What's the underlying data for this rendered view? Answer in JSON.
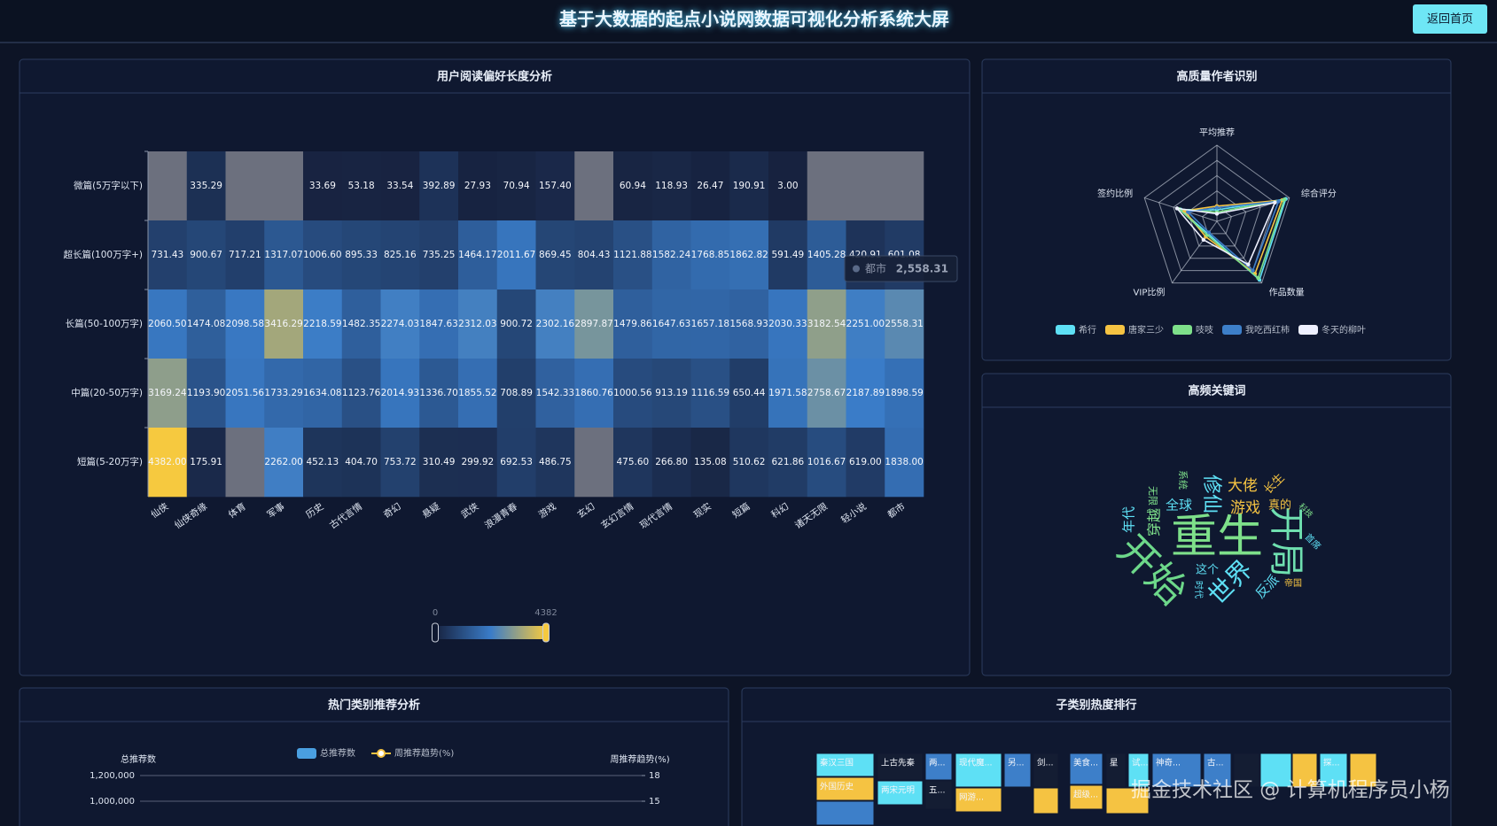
{
  "header": {
    "title": "基于大数据的起点小说网数据可视化分析系统大屏",
    "button": "返回首页"
  },
  "chart_data": [
    {
      "type": "heatmap",
      "title": "用户阅读偏好长度分析",
      "x_categories": [
        "仙侠",
        "仙侠奇缘",
        "体育",
        "军事",
        "历史",
        "古代言情",
        "奇幻",
        "悬疑",
        "武侠",
        "浪漫青春",
        "游戏",
        "玄幻",
        "玄幻言情",
        "现代言情",
        "现实",
        "短篇",
        "科幻",
        "诸天无限",
        "轻小说",
        "都市"
      ],
      "y_categories": [
        "微篇(5万字以下)",
        "超长篇(100万字+)",
        "长篇(50-100万字)",
        "中篇(20-50万字)",
        "短篇(5-20万字)"
      ],
      "values": [
        [
          null,
          335.29,
          null,
          null,
          33.69,
          53.18,
          33.54,
          392.89,
          27.93,
          70.94,
          157.4,
          null,
          60.94,
          118.93,
          26.47,
          190.91,
          3,
          null,
          null,
          null
        ],
        [
          731.43,
          900.67,
          717.21,
          1317.07,
          1006.6,
          895.33,
          825.16,
          735.25,
          1464.17,
          2011.67,
          869.45,
          804.43,
          1121.88,
          1582.24,
          1768.85,
          1862.82,
          591.49,
          1405.28,
          420.91,
          601.08
        ],
        [
          2060.5,
          1474.08,
          2098.58,
          3416.29,
          2218.59,
          1482.35,
          2274.03,
          1847.63,
          2312.03,
          900.72,
          2302.16,
          2897.87,
          1479.86,
          1647.63,
          1657.18,
          1568.93,
          2030.33,
          3182.54,
          2251,
          2558.31
        ],
        [
          3169.24,
          1193.9,
          2051.56,
          1733.29,
          1634.08,
          1123.76,
          2014.93,
          1336.7,
          1855.52,
          708.89,
          1542.33,
          1860.76,
          1000.56,
          913.19,
          1116.59,
          650.44,
          1971.58,
          2758.67,
          2187.89,
          1898.59
        ],
        [
          4382,
          175.91,
          null,
          2262,
          452.13,
          404.7,
          753.72,
          310.49,
          299.92,
          692.53,
          486.75,
          null,
          475.6,
          266.8,
          135.08,
          510.62,
          621.86,
          1016.67,
          619,
          1838
        ]
      ],
      "value_labels": [
        [
          null,
          "335.29",
          null,
          null,
          "33.69",
          "53.18",
          "33.54",
          "392.89",
          "27.93",
          "70.94",
          "157.40",
          null,
          "60.94",
          "118.93",
          "26.47",
          "190.91",
          "3.00",
          null,
          null,
          null
        ],
        [
          "731.43",
          "900.67",
          "717.21",
          "1317.07",
          "1006.60",
          "895.33",
          "825.16",
          "735.25",
          "1464.17",
          "2011.67",
          "869.45",
          "804.43",
          "1121.88",
          "1582.24",
          "1768.85",
          "1862.82",
          "591.49",
          "1405.28",
          "420.91",
          "601.08"
        ],
        [
          "2060.50",
          "1474.08",
          "2098.58",
          "3416.29",
          "2218.59",
          "1482.35",
          "2274.03",
          "1847.63",
          "2312.03",
          "900.72",
          "2302.16",
          "2897.87",
          "1479.86",
          "1647.63",
          "1657.18",
          "1568.93",
          "2030.33",
          "3182.54",
          "2251.00",
          "2558.31"
        ],
        [
          "3169.24",
          "1193.90",
          "2051.56",
          "1733.29",
          "1634.08",
          "1123.76",
          "2014.93",
          "1336.70",
          "1855.52",
          "708.89",
          "1542.33",
          "1860.76",
          "1000.56",
          "913.19",
          "1116.59",
          "650.44",
          "1971.58",
          "2758.67",
          "2187.89",
          "1898.59"
        ],
        [
          "4382.00",
          "175.91",
          null,
          "2262.00",
          "452.13",
          "404.70",
          "753.72",
          "310.49",
          "299.92",
          "692.53",
          "486.75",
          null,
          "475.60",
          "266.80",
          "135.08",
          "510.62",
          "621.86",
          "1016.67",
          "619.00",
          "1838.00"
        ]
      ],
      "visual_range": [
        0,
        4382
      ],
      "colors": [
        "#17223f",
        "#3a7cc8",
        "#f6c93f"
      ],
      "null_color": "#6c707e",
      "tooltip": {
        "name": "都市",
        "value": {
          "value": 2558.31,
          "label": "2,558.31"
        }
      }
    },
    {
      "type": "radar",
      "title": "高质量作者识别",
      "indicators": [
        "平均推荐",
        "综合评分",
        "作品数量",
        "VIP比例",
        "签约比例"
      ],
      "rlim": [
        0,
        100
      ],
      "series": [
        {
          "name": "希行",
          "color": "#5ee0f5",
          "values": [
            15,
            95,
            95,
            20,
            50
          ]
        },
        {
          "name": "唐家三少",
          "color": "#f5c342",
          "values": [
            20,
            90,
            85,
            25,
            45
          ]
        },
        {
          "name": "吱吱",
          "color": "#7ee08a",
          "values": [
            12,
            93,
            92,
            22,
            52
          ]
        },
        {
          "name": "我吃西红柿",
          "color": "#3d7fc9",
          "values": [
            18,
            85,
            80,
            18,
            40
          ]
        },
        {
          "name": "冬天的柳叶",
          "color": "#eef0ff",
          "values": [
            10,
            80,
            70,
            30,
            55
          ]
        }
      ]
    },
    {
      "type": "wordcloud",
      "title": "高频关键词",
      "words": [
        {
          "text": "重生",
          "value": 52,
          "color": "#7ee08a"
        },
        {
          "text": "开局",
          "value": 40,
          "color": "#6fe0b0"
        },
        {
          "text": "开始",
          "value": 44,
          "color": "#6dd88a"
        },
        {
          "text": "世界",
          "value": 28,
          "color": "#5ee0f5"
        },
        {
          "text": "修仙",
          "value": 22,
          "color": "#5ee0f5"
        },
        {
          "text": "大佬",
          "value": 17,
          "color": "#f5c342"
        },
        {
          "text": "游戏",
          "value": 17,
          "color": "#f5c342"
        },
        {
          "text": "真的",
          "value": 13,
          "color": "#f5c342"
        },
        {
          "text": "全球",
          "value": 15,
          "color": "#5ee0f5"
        },
        {
          "text": "穿越",
          "value": 16,
          "color": "#7ee08a"
        },
        {
          "text": "年代",
          "value": 15,
          "color": "#5ee0f5"
        },
        {
          "text": "无限",
          "value": 11,
          "color": "#7ee08a"
        },
        {
          "text": "系统",
          "value": 11,
          "color": "#7ee08a"
        },
        {
          "text": "长生",
          "value": 13,
          "color": "#f5c342"
        },
        {
          "text": "科技",
          "value": 9,
          "color": "#7ee08a"
        },
        {
          "text": "首席",
          "value": 10,
          "color": "#5ee0f5"
        },
        {
          "text": "这个",
          "value": 13,
          "color": "#5ee0f5"
        },
        {
          "text": "时代",
          "value": 10,
          "color": "#5ee0f5"
        },
        {
          "text": "反派",
          "value": 15,
          "color": "#5ee0f5"
        },
        {
          "text": "帝国",
          "value": 10,
          "color": "#f5c342"
        }
      ]
    },
    {
      "type": "bar_line",
      "title": "热门类别推荐分析",
      "series": [
        {
          "name": "总推荐数",
          "color": "#4a9fe0"
        },
        {
          "name": "周推荐趋势(%)",
          "color": "#f5c342",
          "axis": "y2"
        }
      ],
      "y_label": "总推荐数",
      "y2_label": "周推荐趋势(%)",
      "ylim": [
        0,
        1200000
      ],
      "yticks": [
        {
          "value": 1000000,
          "label": "1,000,000"
        },
        {
          "value": 1200000,
          "label": "1,200,000"
        }
      ],
      "y2lim": [
        0,
        18
      ],
      "y2ticks": [
        15,
        18
      ]
    },
    {
      "type": "treemap",
      "title": "子类别热度排行",
      "nodes": [
        {
          "name": "秦汉三国",
          "color": "#5ee0f5"
        },
        {
          "name": "外国历史",
          "color": "#f5c342"
        },
        {
          "name": null,
          "color": "#3d7fc9"
        },
        {
          "name": "上古先秦",
          "color": "#141d33"
        },
        {
          "name": "两宋元明",
          "color": "#5ee0f5"
        },
        {
          "name": "两...",
          "color": "#3d7fc9"
        },
        {
          "name": "五...",
          "color": "#141d33"
        },
        {
          "name": "现代魔...",
          "color": "#5ee0f5"
        },
        {
          "name": "网游...",
          "color": "#f5c342"
        },
        {
          "name": "另...",
          "color": "#3d7fc9"
        },
        {
          "name": "剑...",
          "color": "#141d33"
        },
        {
          "name": null,
          "color": "#f5c342"
        },
        {
          "name": "美食...",
          "color": "#3d7fc9"
        },
        {
          "name": "超级...",
          "color": "#f5c342"
        },
        {
          "name": "星",
          "color": "#141d33"
        },
        {
          "name": "试...",
          "color": "#5ee0f5"
        },
        {
          "name": null,
          "color": "#f5c342"
        },
        {
          "name": "神奇...",
          "color": "#3d7fc9"
        },
        {
          "name": "古...",
          "color": "#3d7fc9"
        },
        {
          "name": null,
          "color": "#141d33"
        },
        {
          "name": null,
          "color": "#5ee0f5"
        },
        {
          "name": null,
          "color": "#f5c342"
        },
        {
          "name": "探...",
          "color": "#5ee0f5"
        },
        {
          "name": null,
          "color": "#f5c342"
        }
      ]
    }
  ],
  "watermark": "掘金技术社区 @ 计算机程序员小杨"
}
